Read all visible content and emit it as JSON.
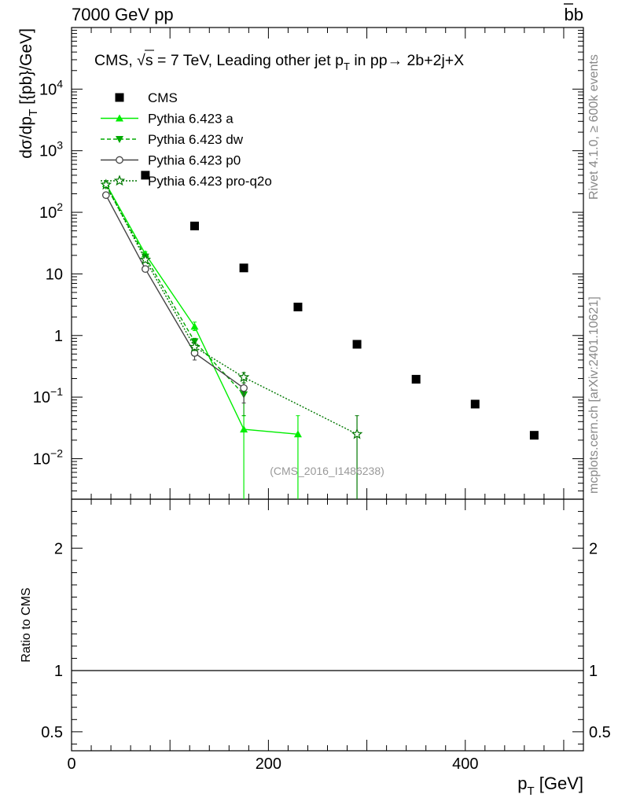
{
  "header": {
    "left": "7000 GeV pp",
    "right_base": "b",
    "right_bar": "b"
  },
  "side_labels": {
    "rivet": "Rivet 4.1.0, ≥ 600k events",
    "mcplots": "mcplots.cern.ch [arXiv:2401.10621]"
  },
  "chart_data": {
    "type": "scatter",
    "title": {
      "prefix": "CMS, ",
      "sqrt": "√",
      "s": "s",
      "energy": " = 7 TeV, Leading other jet p",
      "sub": "T",
      "rest": " in pp→  2b+2j+X"
    },
    "watermark": "(CMS_2016_I1486238)",
    "xlabel": {
      "main": "p",
      "sub": "T",
      "unit": " [GeV]"
    },
    "ylabel": {
      "main": "dσ/dp",
      "sub": "T",
      "unit": " [{pb}/GeV]"
    },
    "ratio_ylabel": "Ratio to CMS",
    "xlim": [
      0,
      520
    ],
    "ylog": true,
    "ylim": [
      0.0022,
      100000
    ],
    "ratio_ylim": [
      0.345,
      2.4
    ],
    "x_ticks": [
      "0",
      "200",
      "400"
    ],
    "y_ticks": [
      {
        "v": 0.01,
        "base": "10",
        "exp": "−2"
      },
      {
        "v": 0.1,
        "base": "10",
        "exp": "−1"
      },
      {
        "v": 1,
        "base": "1",
        "exp": ""
      },
      {
        "v": 10,
        "base": "10",
        "exp": ""
      },
      {
        "v": 100,
        "base": "10",
        "exp": "2"
      },
      {
        "v": 1000,
        "base": "10",
        "exp": "3"
      },
      {
        "v": 10000,
        "base": "10",
        "exp": "4"
      }
    ],
    "ratio_ticks": [
      {
        "v": 0.5,
        "label": "0.5"
      },
      {
        "v": 1,
        "label": "1"
      },
      {
        "v": 2,
        "label": "2"
      }
    ],
    "series": [
      {
        "name": "CMS",
        "color": "#000000",
        "marker": "square",
        "line": "none",
        "x": [
          75,
          125,
          175,
          230,
          290,
          350,
          410,
          470
        ],
        "y": [
          400,
          60,
          12.5,
          2.9,
          0.72,
          0.195,
          0.077,
          0.024
        ]
      },
      {
        "name": "Pythia 6.423 a",
        "color": "#00ee00",
        "marker": "triangle-up",
        "line": "solid",
        "x": [
          35,
          75,
          125,
          175,
          230
        ],
        "y": [
          290,
          21,
          1.4,
          0.03,
          0.025
        ],
        "err_lo": [
          265,
          19,
          1.2,
          0.0001,
          0.0001
        ],
        "err_hi": [
          315,
          23,
          1.65,
          0.05,
          0.05
        ]
      },
      {
        "name": "Pythia 6.423 dw",
        "color": "#00aa00",
        "marker": "triangle-down",
        "line": "dashed",
        "x": [
          35,
          75,
          125,
          175
        ],
        "y": [
          270,
          19,
          0.8,
          0.11
        ],
        "err_lo": [
          250,
          17,
          0.7,
          0.05
        ],
        "err_hi": [
          290,
          21,
          0.9,
          0.17
        ]
      },
      {
        "name": "Pythia 6.423 p0",
        "color": "#444444",
        "marker": "circle-open",
        "line": "solid",
        "x": [
          35,
          75,
          125,
          175
        ],
        "y": [
          190,
          12,
          0.52,
          0.14
        ],
        "err_lo": [
          175,
          11,
          0.4,
          0.08
        ],
        "err_hi": [
          205,
          13,
          0.62,
          0.2
        ]
      },
      {
        "name": "Pythia 6.423 pro-q2o",
        "color": "#007700",
        "marker": "star",
        "line": "dotted",
        "x": [
          35,
          75,
          125,
          175,
          290
        ],
        "y": [
          280,
          17,
          0.65,
          0.21,
          0.025
        ],
        "err_lo": [
          260,
          15.5,
          0.57,
          0.17,
          0.0001
        ],
        "err_hi": [
          300,
          18.5,
          0.75,
          0.25,
          0.05
        ]
      }
    ],
    "ratio_reference": 1,
    "legend_position": "top-left"
  }
}
